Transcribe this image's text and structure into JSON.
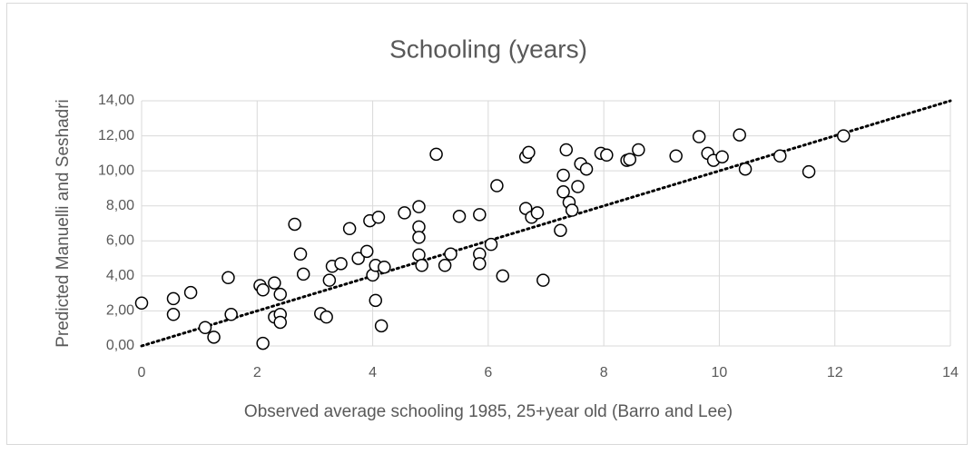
{
  "chart_data": {
    "type": "scatter",
    "title": "Schooling (years)",
    "xlabel": "Observed average schooling 1985, 25+year old (Barro and Lee)",
    "ylabel": "Predicted Manuelli and Seshadri",
    "x": [
      0,
      0.55,
      0.55,
      0.85,
      1.1,
      1.25,
      1.5,
      1.55,
      2.05,
      2.1,
      2.1,
      2.3,
      2.3,
      2.4,
      2.4,
      2.4,
      2.65,
      2.75,
      2.8,
      3.1,
      3.2,
      3.25,
      3.3,
      3.45,
      3.6,
      3.75,
      3.9,
      3.95,
      4.0,
      4.05,
      4.05,
      4.1,
      4.15,
      4.2,
      4.55,
      4.8,
      4.8,
      4.8,
      4.8,
      4.85,
      5.1,
      5.25,
      5.35,
      5.5,
      5.85,
      5.85,
      5.85,
      6.05,
      6.15,
      6.25,
      6.65,
      6.7,
      6.65,
      6.75,
      6.85,
      6.95,
      7.25,
      7.3,
      7.3,
      7.35,
      7.4,
      7.45,
      7.55,
      7.6,
      7.7,
      7.95,
      8.05,
      8.4,
      8.45,
      8.6,
      9.25,
      9.65,
      9.8,
      9.9,
      10.05,
      10.35,
      10.45,
      11.05,
      11.55,
      12.15
    ],
    "y": [
      2.45,
      2.7,
      1.8,
      3.05,
      1.05,
      0.5,
      3.9,
      1.8,
      3.45,
      3.2,
      0.15,
      3.6,
      1.65,
      2.95,
      1.8,
      1.35,
      6.95,
      5.25,
      4.1,
      1.85,
      1.65,
      3.75,
      4.55,
      4.7,
      6.7,
      5.0,
      5.4,
      7.15,
      4.05,
      4.6,
      2.6,
      7.35,
      1.15,
      4.5,
      7.6,
      7.95,
      6.8,
      6.2,
      5.2,
      4.6,
      10.95,
      4.6,
      5.25,
      7.4,
      7.5,
      5.25,
      4.7,
      5.8,
      9.15,
      4.0,
      10.8,
      11.05,
      7.85,
      7.35,
      7.6,
      3.75,
      6.6,
      9.75,
      8.8,
      11.2,
      8.2,
      7.75,
      9.1,
      10.4,
      10.1,
      11.0,
      10.9,
      10.6,
      10.65,
      11.2,
      10.85,
      11.95,
      11.0,
      10.6,
      10.8,
      12.05,
      10.1,
      10.85,
      9.95,
      12.0
    ],
    "marker_color": "#000000",
    "reference_line": {
      "x": [
        0,
        14
      ],
      "y": [
        0,
        14
      ],
      "color": "#000000"
    },
    "xlim": [
      0,
      14
    ],
    "ylim": [
      0,
      14
    ],
    "xticks": [
      0,
      2,
      4,
      6,
      8,
      10,
      12,
      14
    ],
    "yticks": [
      {
        "value": 0,
        "label": "0,00"
      },
      {
        "value": 2,
        "label": "2,00"
      },
      {
        "value": 4,
        "label": "4,00"
      },
      {
        "value": 6,
        "label": "6,00"
      },
      {
        "value": 8,
        "label": "8,00"
      },
      {
        "value": 10,
        "label": "10,00"
      },
      {
        "value": 12,
        "label": "12,00"
      },
      {
        "value": 14,
        "label": "14,00"
      }
    ],
    "grid": true
  }
}
